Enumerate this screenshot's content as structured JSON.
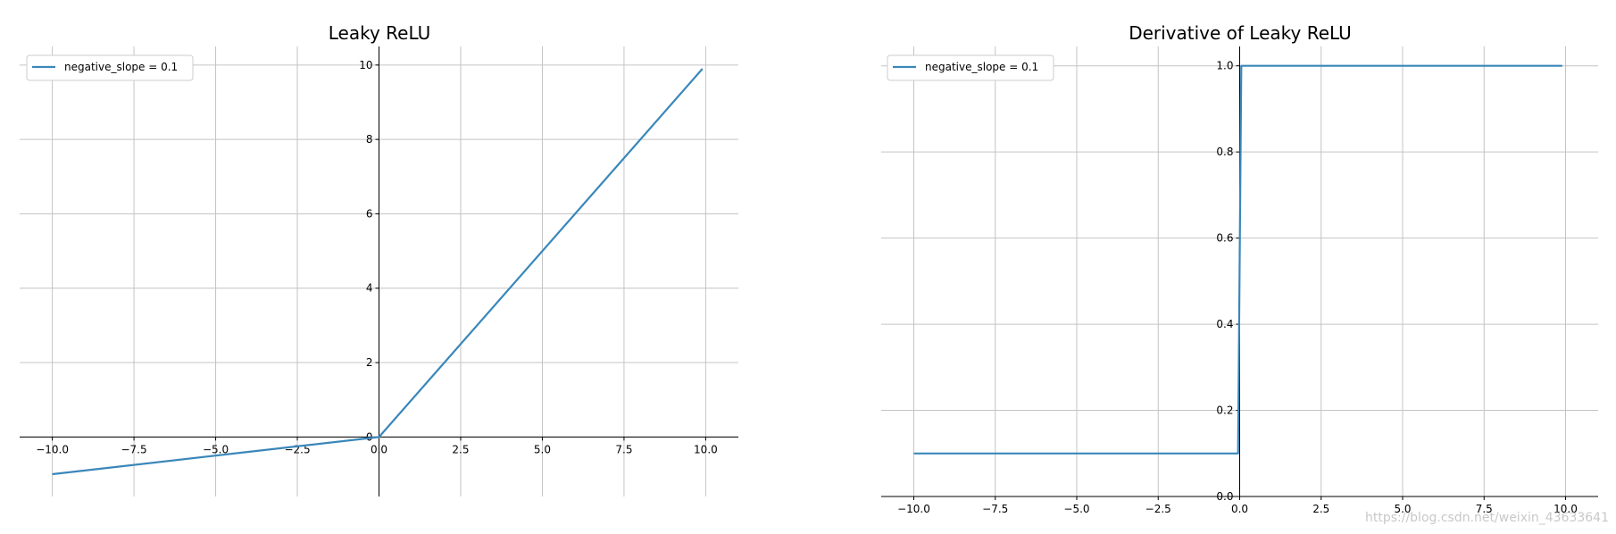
{
  "figure": {
    "watermark": "https://blog.csdn.net/weixin_43633641"
  },
  "chart_data": [
    {
      "type": "line",
      "title": "Leaky ReLU",
      "xlabel": "",
      "ylabel": "",
      "xlim": [
        -11,
        11
      ],
      "ylim": [
        -1.6,
        10.5
      ],
      "xticks": [
        -10,
        -7.5,
        -5,
        -2.5,
        0,
        2.5,
        5,
        7.5,
        10
      ],
      "xtick_labels": [
        "−10.0",
        "−7.5",
        "−5.0",
        "−2.5",
        "0.0",
        "2.5",
        "5.0",
        "7.5",
        "10.0"
      ],
      "yticks": [
        0,
        2,
        4,
        6,
        8,
        10
      ],
      "ytick_labels": [
        "0",
        "2",
        "4",
        "6",
        "8",
        "10"
      ],
      "grid": true,
      "legend_position": "top-left",
      "series_color": "#3a87ba",
      "series": [
        {
          "name": "negative_slope = 0.1",
          "x": [
            -10,
            0,
            9.9
          ],
          "y": [
            -1.0,
            0,
            9.9
          ]
        }
      ]
    },
    {
      "type": "line",
      "title": "Derivative of Leaky ReLU",
      "xlabel": "",
      "ylabel": "",
      "xlim": [
        -11,
        11
      ],
      "ylim": [
        0,
        1.045
      ],
      "xticks": [
        -10,
        -7.5,
        -5,
        -2.5,
        0,
        2.5,
        5,
        7.5,
        10
      ],
      "xtick_labels": [
        "−10.0",
        "−7.5",
        "−5.0",
        "−2.5",
        "0.0",
        "2.5",
        "5.0",
        "7.5",
        "10.0"
      ],
      "yticks": [
        0,
        0.2,
        0.4,
        0.6,
        0.8,
        1.0
      ],
      "ytick_labels": [
        "0.0",
        "0.2",
        "0.4",
        "0.6",
        "0.8",
        "1.0"
      ],
      "grid": true,
      "legend_position": "top-left",
      "series_color": "#3a87ba",
      "series": [
        {
          "name": "negative_slope = 0.1",
          "x": [
            -10,
            -0.05,
            0.05,
            9.9
          ],
          "y": [
            0.1,
            0.1,
            1.0,
            1.0
          ]
        }
      ]
    }
  ]
}
